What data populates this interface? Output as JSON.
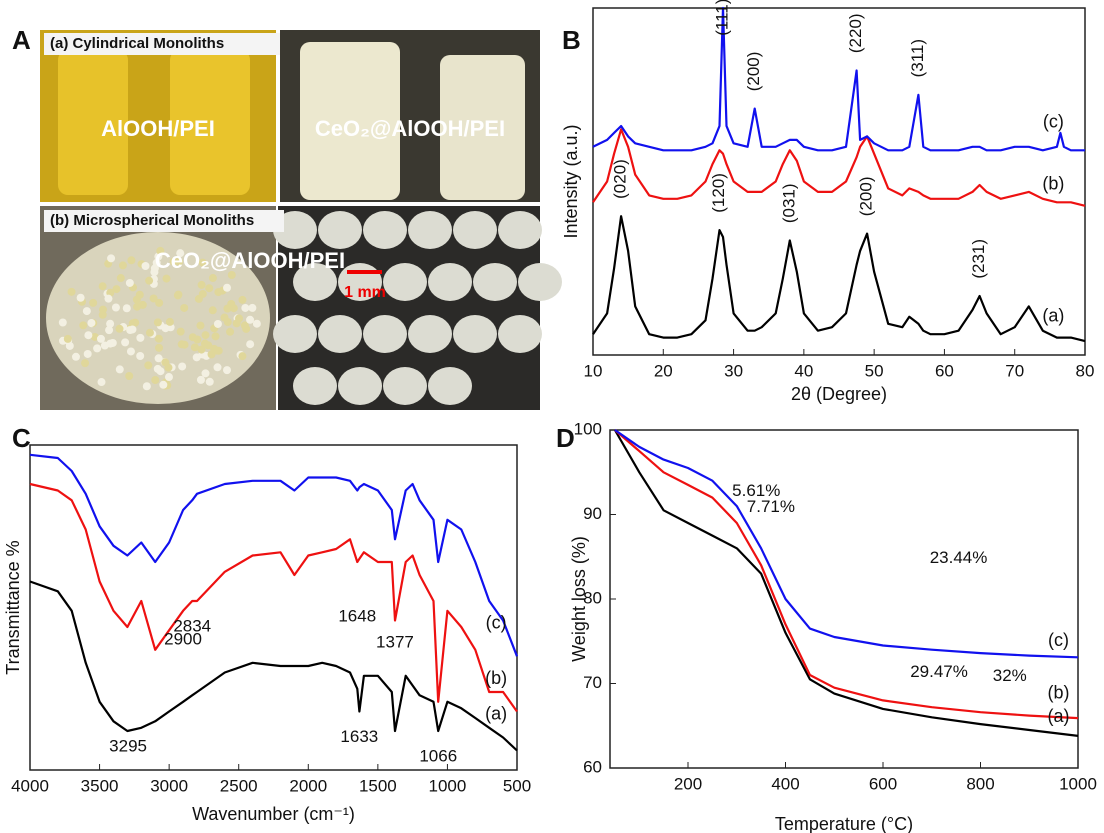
{
  "photo_panel": {
    "panel_label": "A",
    "caption_a": "(a) Cylindrical Monoliths",
    "caption_b": "(b) Microspherical Monoliths",
    "label_left": "AlOOH/PEI",
    "label_right": "CeO₂@AlOOH/PEI",
    "label_spheres": "CeO₂@AlOOH/PEI",
    "scale_bar": "1 mm"
  },
  "chart_data": [
    {
      "type": "line",
      "panel_label": "B",
      "xlabel": "2θ (Degree)",
      "ylabel": "Intensity (a.u.)",
      "xlim": [
        10,
        80
      ],
      "ylim": [
        0,
        100
      ],
      "xticks": [
        10,
        20,
        30,
        40,
        50,
        60,
        70,
        80
      ],
      "x": [
        10,
        12,
        13,
        14,
        15,
        16,
        18,
        20,
        22,
        24,
        26,
        27,
        28,
        28.5,
        29,
        30,
        32,
        33,
        34,
        36,
        37,
        38,
        39,
        40,
        42,
        44,
        46,
        47.5,
        48,
        49,
        50,
        52,
        54,
        55,
        56.3,
        57,
        58,
        60,
        62,
        64,
        65,
        66,
        68,
        70,
        72,
        74,
        76,
        76.5,
        77,
        78,
        80
      ],
      "series": [
        {
          "name": "(a)",
          "color": "#000000",
          "values": [
            6,
            12,
            25,
            40,
            30,
            14,
            6,
            5,
            5,
            6,
            10,
            22,
            36,
            34,
            26,
            12,
            7,
            7,
            8,
            12,
            22,
            33,
            24,
            12,
            7,
            8,
            12,
            26,
            30,
            35,
            24,
            9,
            8,
            11,
            9,
            7,
            6,
            6,
            7,
            13,
            17,
            12,
            6,
            8,
            14,
            7,
            5,
            5,
            5,
            5,
            4
          ]
        },
        {
          "name": "(b)",
          "color": "#ee1111",
          "values": [
            44,
            50,
            58,
            65,
            60,
            52,
            46,
            45,
            45,
            46,
            50,
            55,
            59,
            58,
            55,
            50,
            47,
            47,
            47,
            50,
            55,
            59,
            56,
            50,
            47,
            47,
            50,
            57,
            60,
            63,
            58,
            48,
            46,
            48,
            47,
            46,
            45,
            45,
            45,
            47,
            49,
            47,
            45,
            46,
            47,
            45,
            44,
            44,
            44,
            44,
            43
          ]
        },
        {
          "name": "(c)",
          "color": "#1111ee",
          "values": [
            60,
            62,
            64,
            66,
            63,
            61,
            60,
            59,
            59,
            59,
            60,
            61,
            66,
            100,
            66,
            61,
            60,
            71,
            60,
            60,
            61,
            62,
            62,
            60,
            59,
            59,
            60,
            82,
            62,
            63,
            61,
            59,
            59,
            60,
            75,
            60,
            59,
            59,
            59,
            60,
            60,
            59,
            59,
            60,
            60,
            59,
            60,
            64,
            60,
            59,
            59
          ]
        }
      ],
      "peak_labels": [
        {
          "text": "(111)",
          "x": 28.5,
          "y": 92
        },
        {
          "text": "(200)",
          "x": 33,
          "y": 76
        },
        {
          "text": "(220)",
          "x": 47.5,
          "y": 87
        },
        {
          "text": "(311)",
          "x": 56.3,
          "y": 80
        },
        {
          "text": "(020)",
          "x": 14,
          "y": 45
        },
        {
          "text": "(120)",
          "x": 28,
          "y": 41
        },
        {
          "text": "(031)",
          "x": 38,
          "y": 38
        },
        {
          "text": "(200)",
          "x": 49,
          "y": 40
        },
        {
          "text": "(231)",
          "x": 65,
          "y": 22
        }
      ],
      "curve_labels": [
        {
          "text": "(c)",
          "x": 75.5,
          "y": 67
        },
        {
          "text": "(b)",
          "x": 75.5,
          "y": 49
        },
        {
          "text": "(a)",
          "x": 75.5,
          "y": 11
        }
      ]
    },
    {
      "type": "line",
      "panel_label": "C",
      "xlabel": "Wavenumber (cm⁻¹)",
      "ylabel": "Transmittance %",
      "xlim": [
        4000,
        500
      ],
      "ylim": [
        0,
        100
      ],
      "xticks": [
        4000,
        3500,
        3000,
        2500,
        2000,
        1500,
        1000,
        500
      ],
      "x": [
        4000,
        3800,
        3700,
        3600,
        3500,
        3400,
        3300,
        3200,
        3100,
        3000,
        2900,
        2834,
        2800,
        2600,
        2400,
        2200,
        2100,
        2000,
        1900,
        1800,
        1700,
        1648,
        1633,
        1600,
        1500,
        1400,
        1377,
        1300,
        1250,
        1200,
        1100,
        1066,
        1000,
        900,
        800,
        700,
        600,
        500
      ],
      "series": [
        {
          "name": "(c)",
          "color": "#1111ee",
          "values": [
            97,
            96,
            92,
            85,
            75,
            69,
            66,
            70,
            64,
            70,
            80,
            83,
            85,
            88,
            89,
            89,
            86,
            90,
            90,
            90,
            89,
            86,
            87,
            88,
            86,
            80,
            71,
            86,
            88,
            83,
            77,
            64,
            77,
            74,
            64,
            52,
            46,
            35
          ]
        },
        {
          "name": "(b)",
          "color": "#ee1111",
          "values": [
            88,
            86,
            83,
            74,
            58,
            49,
            44,
            52,
            37,
            43,
            49,
            52,
            52,
            61,
            66,
            67,
            60,
            66,
            67,
            68,
            71,
            64,
            65,
            67,
            64,
            64,
            46,
            64,
            66,
            60,
            52,
            21,
            49,
            44,
            37,
            24,
            24,
            18
          ]
        },
        {
          "name": "(a)",
          "color": "#000000",
          "values": [
            58,
            55,
            49,
            33,
            21,
            15,
            12,
            13,
            15,
            18,
            21,
            23,
            24,
            30,
            33,
            32,
            32,
            32,
            33,
            32,
            30,
            25,
            18,
            29,
            29,
            24,
            12,
            29,
            26,
            23,
            21,
            12,
            21,
            19,
            16,
            13,
            10,
            6
          ]
        }
      ],
      "annotations": [
        {
          "text": "3295",
          "x": 3295,
          "y": 7
        },
        {
          "text": "2900",
          "x": 2900,
          "y": 40
        },
        {
          "text": "2834",
          "x": 2834,
          "y": 44
        },
        {
          "text": "1648",
          "x": 1648,
          "y": 47
        },
        {
          "text": "1377",
          "x": 1377,
          "y": 39
        },
        {
          "text": "1633",
          "x": 1633,
          "y": 10
        },
        {
          "text": "1066",
          "x": 1066,
          "y": 4
        }
      ],
      "curve_labels": [
        {
          "text": "(c)",
          "x": 650,
          "y": 45
        },
        {
          "text": "(b)",
          "x": 650,
          "y": 28
        },
        {
          "text": "(a)",
          "x": 650,
          "y": 17
        }
      ]
    },
    {
      "type": "line",
      "panel_label": "D",
      "xlabel": "Temperature (°C)",
      "ylabel": "Weight loss (%)",
      "xlim": [
        40,
        1000
      ],
      "ylim": [
        60,
        100
      ],
      "xticks": [
        200,
        400,
        600,
        800,
        1000
      ],
      "yticks": [
        60,
        70,
        80,
        90,
        100
      ],
      "x": [
        50,
        100,
        150,
        200,
        250,
        300,
        350,
        400,
        450,
        500,
        600,
        700,
        800,
        900,
        1000
      ],
      "series": [
        {
          "name": "(a)",
          "color": "#000000",
          "values": [
            100,
            95,
            90.5,
            89,
            87.5,
            86,
            83,
            76,
            70.5,
            68.8,
            67,
            66,
            65.2,
            64.5,
            63.8
          ]
        },
        {
          "name": "(b)",
          "color": "#ee1111",
          "values": [
            100,
            97.5,
            95,
            93.5,
            92,
            89,
            84,
            77,
            71,
            69.5,
            68,
            67.2,
            66.6,
            66.2,
            65.9
          ]
        },
        {
          "name": "(c)",
          "color": "#1111ee",
          "values": [
            100,
            98,
            96.5,
            95.5,
            94,
            91,
            86,
            80,
            76.5,
            75.5,
            74.5,
            74,
            73.6,
            73.3,
            73.1
          ]
        }
      ],
      "annotation_color": "#2222dd",
      "annotations": [
        {
          "text": "5.61%",
          "x": 340,
          "y": 92.7
        },
        {
          "text": "7.71%",
          "x": 370,
          "y": 90.8
        },
        {
          "text": "23.44%",
          "x": 755,
          "y": 84.8
        },
        {
          "text": "29.47%",
          "x": 715,
          "y": 71.3
        },
        {
          "text": "32%",
          "x": 860,
          "y": 70.8
        }
      ],
      "curve_labels": [
        {
          "text": "(c)",
          "x": 960,
          "y": 75
        },
        {
          "text": "(b)",
          "x": 960,
          "y": 68.8
        },
        {
          "text": "(a)",
          "x": 960,
          "y": 66
        }
      ]
    }
  ]
}
